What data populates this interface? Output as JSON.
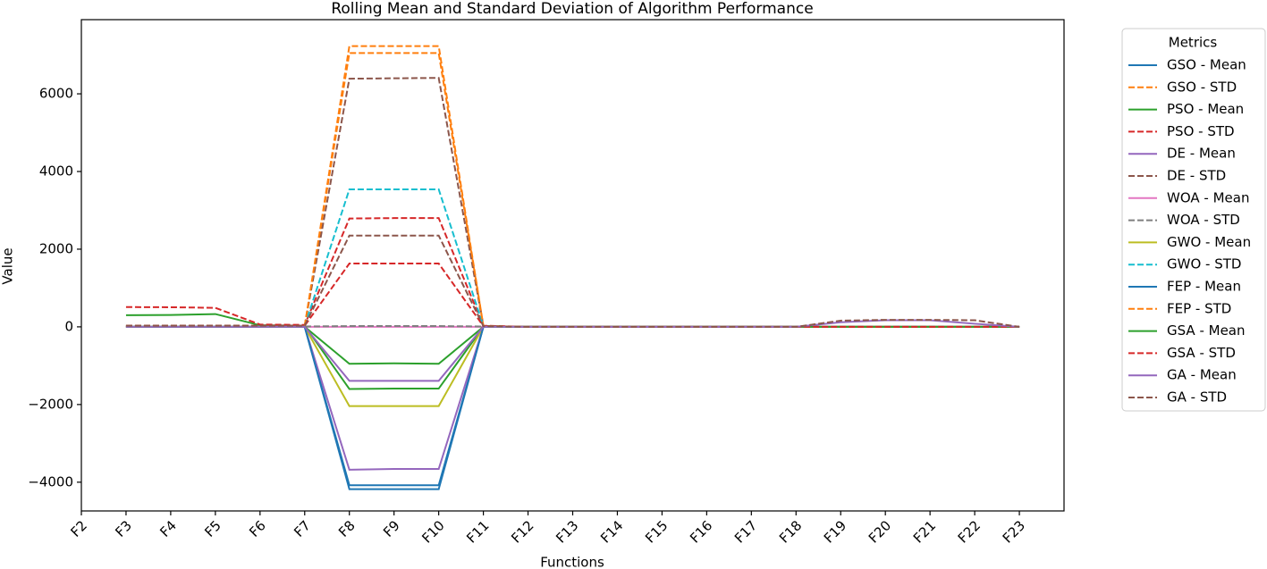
{
  "chart_data": {
    "type": "line",
    "title": "Rolling Mean and Standard Deviation of Algorithm Performance",
    "x_label": "Functions",
    "y_label": "Value",
    "legend_title": "Metrics",
    "legend_position": "outside-right",
    "categories": [
      "F2",
      "F3",
      "F4",
      "F5",
      "F6",
      "F7",
      "F8",
      "F9",
      "F10",
      "F11",
      "F12",
      "F13",
      "F14",
      "F15",
      "F16",
      "F17",
      "F18",
      "F19",
      "F20",
      "F21",
      "F22",
      "F23"
    ],
    "ylim": [
      -4740,
      7910
    ],
    "yticks": [
      {
        "value": -4000,
        "label": "−4000"
      },
      {
        "value": -2000,
        "label": "−2000"
      },
      0,
      2000,
      4000,
      6000
    ],
    "series": [
      {
        "name": "GSO - Mean",
        "color": "#1f77b4",
        "linestyle": "solid",
        "values": [
          null,
          0,
          0,
          0,
          0,
          0,
          -4080,
          -4080,
          -4080,
          0,
          0,
          0,
          0,
          0,
          0,
          0,
          0,
          0,
          0,
          0,
          0,
          0
        ]
      },
      {
        "name": "GSO - STD",
        "color": "#ff7f0e",
        "linestyle": "dashed",
        "values": [
          null,
          20,
          20,
          20,
          20,
          20,
          7050,
          7050,
          7050,
          20,
          0,
          0,
          0,
          0,
          0,
          0,
          0,
          0,
          0,
          0,
          0,
          0
        ]
      },
      {
        "name": "PSO - Mean",
        "color": "#2ca02c",
        "linestyle": "solid",
        "values": [
          null,
          300,
          305,
          330,
          40,
          30,
          -1600,
          -1590,
          -1590,
          0,
          0,
          0,
          0,
          0,
          0,
          0,
          0,
          0,
          0,
          0,
          0,
          0
        ]
      },
      {
        "name": "PSO - STD",
        "color": "#d62728",
        "linestyle": "dashed",
        "values": [
          null,
          510,
          505,
          490,
          60,
          50,
          2790,
          2800,
          2800,
          30,
          0,
          0,
          0,
          0,
          0,
          0,
          0,
          0,
          0,
          0,
          0,
          0
        ]
      },
      {
        "name": "DE - Mean",
        "color": "#9467bd",
        "linestyle": "solid",
        "values": [
          null,
          0,
          0,
          0,
          0,
          0,
          -3680,
          -3660,
          -3660,
          0,
          0,
          0,
          0,
          0,
          0,
          0,
          0,
          0,
          0,
          0,
          0,
          0
        ]
      },
      {
        "name": "DE - STD",
        "color": "#8c564b",
        "linestyle": "dashed",
        "values": [
          null,
          30,
          30,
          30,
          30,
          30,
          6390,
          6400,
          6410,
          20,
          0,
          0,
          0,
          0,
          0,
          0,
          0,
          0,
          0,
          0,
          0,
          0
        ]
      },
      {
        "name": "WOA - Mean",
        "color": "#e377c2",
        "linestyle": "solid",
        "values": [
          null,
          0,
          0,
          0,
          0,
          0,
          0,
          0,
          0,
          0,
          0,
          0,
          0,
          0,
          0,
          0,
          0,
          0,
          0,
          0,
          0,
          0
        ]
      },
      {
        "name": "WOA - STD",
        "color": "#7f7f7f",
        "linestyle": "dashed",
        "values": [
          null,
          10,
          10,
          10,
          10,
          10,
          20,
          20,
          20,
          10,
          0,
          0,
          0,
          0,
          0,
          0,
          0,
          0,
          0,
          0,
          0,
          0
        ]
      },
      {
        "name": "GWO - Mean",
        "color": "#bcbd22",
        "linestyle": "solid",
        "values": [
          null,
          0,
          0,
          0,
          0,
          0,
          -2040,
          -2040,
          -2040,
          0,
          0,
          0,
          0,
          0,
          0,
          0,
          0,
          0,
          0,
          0,
          0,
          0
        ]
      },
      {
        "name": "GWO - STD",
        "color": "#17becf",
        "linestyle": "dashed",
        "values": [
          null,
          20,
          20,
          20,
          20,
          20,
          3540,
          3540,
          3540,
          20,
          0,
          0,
          0,
          0,
          0,
          0,
          0,
          0,
          0,
          0,
          0,
          0
        ]
      },
      {
        "name": "FEP - Mean",
        "color": "#1f77b4",
        "linestyle": "solid",
        "values": [
          null,
          0,
          0,
          0,
          0,
          0,
          -4180,
          -4180,
          -4180,
          0,
          0,
          0,
          0,
          0,
          0,
          0,
          0,
          0,
          0,
          0,
          0,
          0
        ]
      },
      {
        "name": "FEP - STD",
        "color": "#ff7f0e",
        "linestyle": "dashed",
        "values": [
          null,
          20,
          20,
          20,
          20,
          20,
          7230,
          7230,
          7230,
          20,
          0,
          0,
          0,
          0,
          0,
          0,
          0,
          0,
          0,
          0,
          0,
          0
        ]
      },
      {
        "name": "GSA - Mean",
        "color": "#2ca02c",
        "linestyle": "solid",
        "values": [
          null,
          0,
          0,
          0,
          0,
          0,
          -950,
          -940,
          -950,
          0,
          0,
          0,
          0,
          0,
          0,
          0,
          0,
          0,
          0,
          0,
          0,
          0
        ]
      },
      {
        "name": "GSA - STD",
        "color": "#d62728",
        "linestyle": "dashed",
        "values": [
          null,
          30,
          30,
          30,
          30,
          30,
          1630,
          1630,
          1630,
          20,
          0,
          0,
          0,
          0,
          0,
          0,
          0,
          0,
          0,
          0,
          0,
          0
        ]
      },
      {
        "name": "GA - Mean",
        "color": "#9467bd",
        "linestyle": "solid",
        "values": [
          null,
          0,
          0,
          0,
          0,
          0,
          -1390,
          -1390,
          -1390,
          0,
          0,
          0,
          0,
          0,
          0,
          0,
          0,
          120,
          170,
          170,
          80,
          0
        ]
      },
      {
        "name": "GA - STD",
        "color": "#8c564b",
        "linestyle": "dashed",
        "values": [
          null,
          30,
          30,
          30,
          30,
          30,
          2350,
          2350,
          2350,
          20,
          0,
          0,
          0,
          0,
          0,
          0,
          0,
          160,
          180,
          180,
          170,
          0
        ]
      }
    ]
  }
}
